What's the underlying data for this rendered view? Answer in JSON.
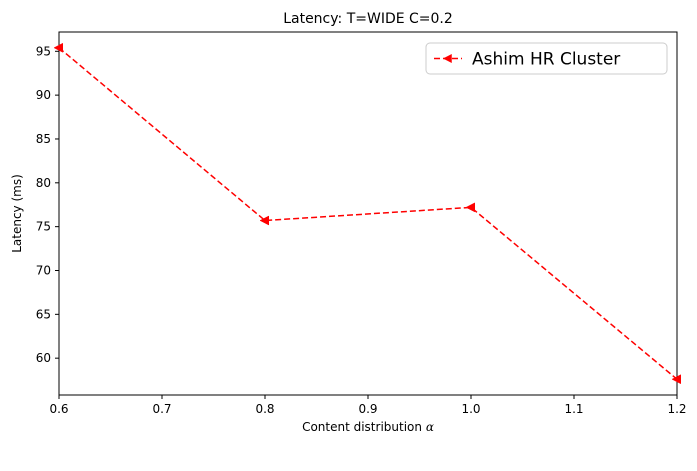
{
  "chart_data": {
    "type": "line",
    "title": "Latency: T=WIDE C=0.2",
    "xlabel": "Content distribution α",
    "ylabel": "Latency (ms)",
    "xlim": [
      0.6,
      1.2
    ],
    "ylim": [
      55.8,
      97.2
    ],
    "x_ticks": [
      0.6,
      0.7,
      0.8,
      0.9,
      1.0,
      1.1,
      1.2
    ],
    "x_tick_labels": [
      "0.6",
      "0.7",
      "0.8",
      "0.9",
      "1.0",
      "1.1",
      "1.2"
    ],
    "y_ticks": [
      60,
      65,
      70,
      75,
      80,
      85,
      90,
      95
    ],
    "y_tick_labels": [
      "60",
      "65",
      "70",
      "75",
      "80",
      "85",
      "90",
      "95"
    ],
    "grid": false,
    "legend_position": "top-right",
    "series": [
      {
        "name": "Ashim HR Cluster",
        "color": "#ff0000",
        "line_style": "dashed",
        "marker": "triangle-left",
        "x": [
          0.6,
          0.8,
          1.0,
          1.2
        ],
        "y": [
          95.4,
          75.7,
          77.2,
          57.6
        ]
      }
    ]
  }
}
